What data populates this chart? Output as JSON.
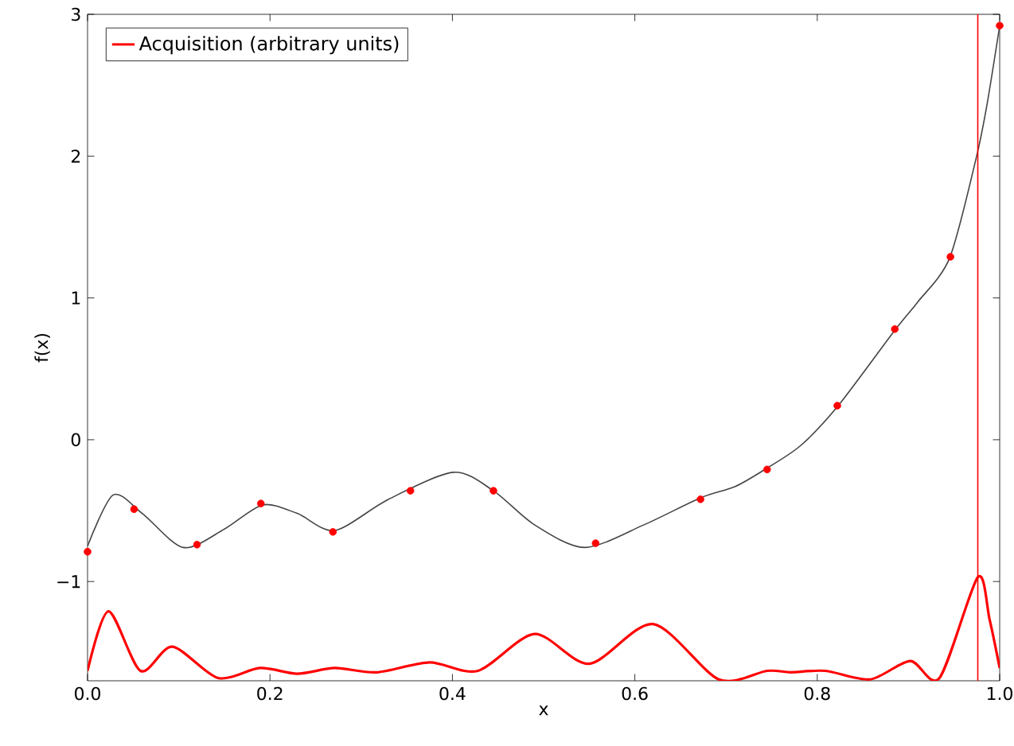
{
  "chart_data": {
    "type": "line",
    "xlabel": "x",
    "ylabel": "f(x)",
    "xlim": [
      0,
      1
    ],
    "ylim": [
      -1.7,
      3
    ],
    "xticks": [
      {
        "value": 0,
        "label": "0.0"
      },
      {
        "value": 0.2,
        "label": "0.2"
      },
      {
        "value": 0.4,
        "label": "0.4"
      },
      {
        "value": 0.6,
        "label": "0.6"
      },
      {
        "value": 0.8,
        "label": "0.8"
      },
      {
        "value": 1,
        "label": "1.0"
      }
    ],
    "yticks": [
      {
        "value": -1,
        "label": "−1"
      },
      0,
      1,
      2,
      3
    ],
    "grid": false,
    "legend": "top left",
    "series": [
      {
        "color": "#444444",
        "marker": "none",
        "x": [
          0,
          0.028,
          0.06,
          0.105,
          0.15,
          0.192,
          0.23,
          0.271,
          0.33,
          0.401,
          0.445,
          0.49,
          0.545,
          0.61,
          0.672,
          0.71,
          0.745,
          0.782,
          0.823,
          0.886,
          0.91,
          0.945,
          0.974,
          0.986,
          1.0
        ],
        "values": [
          -0.75,
          -0.39,
          -0.52,
          -0.76,
          -0.63,
          -0.46,
          -0.52,
          -0.64,
          -0.42,
          -0.23,
          -0.36,
          -0.6,
          -0.76,
          -0.6,
          -0.41,
          -0.33,
          -0.2,
          -0.04,
          0.24,
          0.78,
          0.97,
          1.28,
          1.98,
          2.36,
          2.92
        ]
      },
      {
        "type": "scatter",
        "color": "#ff0000",
        "marker": "circle",
        "x": [
          0,
          0.051,
          0.12,
          0.19,
          0.269,
          0.354,
          0.445,
          0.557,
          0.672,
          0.745,
          0.822,
          0.885,
          0.946,
          1.0
        ],
        "values": [
          -0.79,
          -0.49,
          -0.74,
          -0.45,
          -0.65,
          -0.36,
          -0.36,
          -0.73,
          -0.42,
          -0.21,
          0.24,
          0.78,
          1.29,
          2.92
        ]
      },
      {
        "name": "Acquisition (arbitrary units)",
        "color": "#ff0000",
        "marker": "none",
        "x": [
          0,
          0.023,
          0.058,
          0.093,
          0.143,
          0.189,
          0.23,
          0.271,
          0.317,
          0.375,
          0.428,
          0.49,
          0.55,
          0.62,
          0.692,
          0.745,
          0.771,
          0.809,
          0.858,
          0.902,
          0.934,
          0.976,
          0.989,
          1.0
        ],
        "values": [
          -1.63,
          -1.21,
          -1.63,
          -1.46,
          -1.68,
          -1.61,
          -1.65,
          -1.61,
          -1.64,
          -1.57,
          -1.63,
          -1.37,
          -1.58,
          -1.3,
          -1.69,
          -1.63,
          -1.64,
          -1.63,
          -1.69,
          -1.56,
          -1.68,
          -0.97,
          -1.27,
          -1.61
        ]
      }
    ],
    "ref_lines": [
      {
        "axis": "x",
        "value": 0.976,
        "color": "#ff0000"
      }
    ]
  }
}
